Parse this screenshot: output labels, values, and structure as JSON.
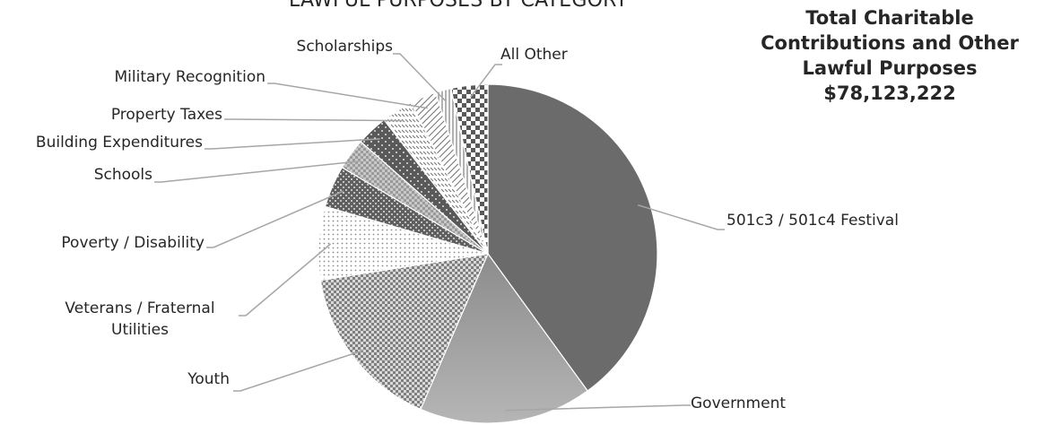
{
  "chart_data": {
    "type": "pie",
    "title": "LAWFUL PURPOSES BY CATEGORY",
    "categories": [
      "501c3 / 501c4 Festival",
      "Government",
      "Youth",
      "Veterans / Fraternal Utilities",
      "Poverty / Disability",
      "Schools",
      "Building Expenditures",
      "Property Taxes",
      "Military Recognition",
      "Scholarships",
      "All Other"
    ],
    "values": [
      40.0,
      16.5,
      16.0,
      7.0,
      4.0,
      3.0,
      3.0,
      3.0,
      2.5,
      1.5,
      3.5
    ],
    "patterns": [
      "solid-dark",
      "gradient",
      "small-checks",
      "dots",
      "dark-grid",
      "light-grid",
      "sparse-dots",
      "dashes",
      "diagonal",
      "vertical",
      "checkerboard"
    ],
    "legend": "none (callout labels)"
  },
  "summary": {
    "line1": "Total Charitable",
    "line2": "Contributions and Other",
    "line3": "Lawful Purposes",
    "total": "$78,123,222"
  }
}
